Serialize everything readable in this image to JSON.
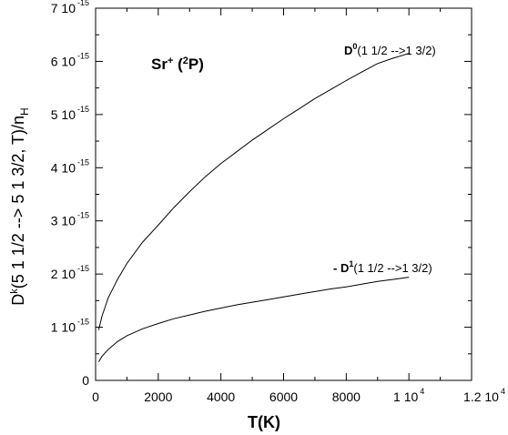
{
  "chart_data": {
    "type": "line",
    "title": "Sr⁺ (²P)",
    "title_parts": {
      "main": "Sr",
      "charge": "+",
      "open": " (",
      "sup": "2",
      "term": "P",
      "close": ")"
    },
    "xlabel": "T(K)",
    "ylabel": "Dᵏ(5 1 1/2 --> 5 1 3/2,  T)/nₕ",
    "ylabel_parts": {
      "main": "D",
      "sup": "k",
      "body": "(5 1 1/2 --> 5 1 3/2,  T)/n",
      "sub": "H"
    },
    "xlim": [
      0,
      12000
    ],
    "ylim": [
      0,
      7e-15
    ],
    "x_ticks": [
      {
        "value": 0,
        "label": "0",
        "exp": ""
      },
      {
        "value": 2000,
        "label": "2000",
        "exp": ""
      },
      {
        "value": 4000,
        "label": "4000",
        "exp": ""
      },
      {
        "value": 6000,
        "label": "6000",
        "exp": ""
      },
      {
        "value": 8000,
        "label": "8000",
        "exp": ""
      },
      {
        "value": 10000,
        "label": "1 10",
        "exp": "4"
      },
      {
        "value": 12000,
        "label": "1.2 10",
        "exp": "4"
      }
    ],
    "y_ticks": [
      {
        "value": 0,
        "label": "0",
        "exp": ""
      },
      {
        "value": 1e-15,
        "label": "1 10",
        "exp": "-15"
      },
      {
        "value": 2e-15,
        "label": "2 10",
        "exp": "-15"
      },
      {
        "value": 3e-15,
        "label": "3 10",
        "exp": "-15"
      },
      {
        "value": 4e-15,
        "label": "4 10",
        "exp": "-15"
      },
      {
        "value": 5e-15,
        "label": "5 10",
        "exp": "-15"
      },
      {
        "value": 6e-15,
        "label": "6 10",
        "exp": "-15"
      },
      {
        "value": 7e-15,
        "label": "7 10",
        "exp": "-15"
      }
    ],
    "series": [
      {
        "name": "D⁰(1 1/2 -->1 3/2)",
        "label_parts": {
          "prefix": "",
          "main": "D",
          "sup": "0",
          "rest": "(1 1/2 -->1 3/2)"
        },
        "x": [
          100,
          200,
          400,
          700,
          1000,
          1500,
          2000,
          2500,
          3000,
          3500,
          4000,
          4500,
          5000,
          5500,
          6000,
          6500,
          7000,
          7500,
          8000,
          8500,
          9000,
          9500,
          10000
        ],
        "y": [
          9.5e-16,
          1.2e-15,
          1.55e-15,
          1.9e-15,
          2.2e-15,
          2.6e-15,
          2.92e-15,
          3.25e-15,
          3.55e-15,
          3.83e-15,
          4.08e-15,
          4.3e-15,
          4.52e-15,
          4.72e-15,
          4.92e-15,
          5.11e-15,
          5.3e-15,
          5.47e-15,
          5.64e-15,
          5.8e-15,
          5.96e-15,
          6.06e-15,
          6.15e-15
        ]
      },
      {
        "name": "- D¹(1 1/2 -->1 3/2)",
        "label_parts": {
          "prefix": "- ",
          "main": "D",
          "sup": "1",
          "rest": "(1 1/2 -->1 3/2)"
        },
        "x": [
          100,
          200,
          400,
          700,
          1000,
          1500,
          2000,
          2500,
          3000,
          3500,
          4000,
          4500,
          5000,
          5500,
          6000,
          6500,
          7000,
          7500,
          8000,
          8500,
          9000,
          9500,
          10000
        ],
        "y": [
          3.5e-16,
          4.5e-16,
          5.8e-16,
          7.3e-16,
          8.4e-16,
          9.7e-16,
          1.07e-15,
          1.16e-15,
          1.23e-15,
          1.3e-15,
          1.36e-15,
          1.42e-15,
          1.47e-15,
          1.52e-15,
          1.57e-15,
          1.62e-15,
          1.67e-15,
          1.72e-15,
          1.76e-15,
          1.81e-15,
          1.86e-15,
          1.9e-15,
          1.94e-15
        ]
      }
    ],
    "grid": false,
    "legend": "none"
  }
}
